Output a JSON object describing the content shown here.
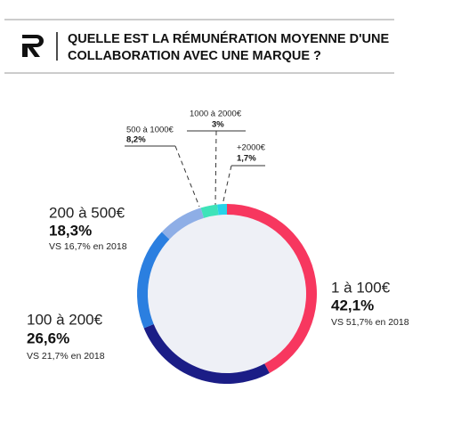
{
  "chart_data": {
    "type": "donut",
    "title": [
      "QUELLE EST LA RÉMUNÉRATION MOYENNE D'UNE",
      "COLLABORATION AVEC UNE MARQUE ?"
    ],
    "categories": [
      "1 à 100€",
      "100 à 200€",
      "200 à 500€",
      "500 à 1000€",
      "1000 à 2000€",
      "+2000€"
    ],
    "values": [
      42.1,
      26.6,
      18.3,
      8.2,
      3,
      1.7
    ],
    "value_labels": [
      "42,1%",
      "26,6%",
      "18,3%",
      "8,2%",
      "3%",
      "1,7%"
    ],
    "comparison_labels": [
      "VS 51,7% en 2018",
      "VS 21,7% en 2018",
      "VS 16,7% en 2018",
      null,
      null,
      null
    ],
    "colors": [
      "#f7375f",
      "#1b1d86",
      "#2b7fe0",
      "#8eaee6",
      "#3ee3b9",
      "#27d3e9"
    ]
  }
}
